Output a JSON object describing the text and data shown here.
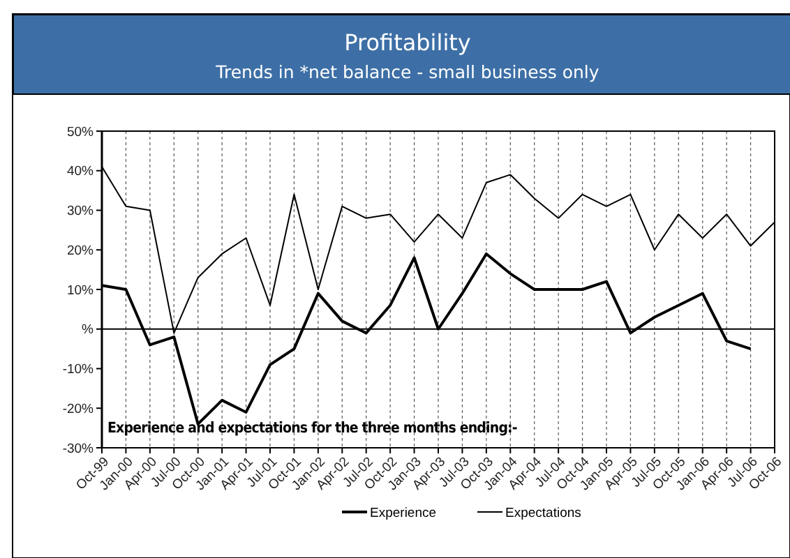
{
  "chart_data": {
    "type": "line",
    "title": "Profitability",
    "subtitle": "Trends in *net balance - small business only",
    "categories": [
      "Oct-99",
      "Jan-00",
      "Apr-00",
      "Jul-00",
      "Oct-00",
      "Jan-01",
      "Apr-01",
      "Jul-01",
      "Oct-01",
      "Jan-02",
      "Apr-02",
      "Jul-02",
      "Oct-02",
      "Jan-03",
      "Apr-03",
      "Jul-03",
      "Oct-03",
      "Jan-04",
      "Apr-04",
      "Jul-04",
      "Oct-04",
      "Jan-05",
      "Apr-05",
      "Jul-05",
      "Oct-05",
      "Jan-06",
      "Apr-06",
      "Jul-06",
      "Oct-06"
    ],
    "series": [
      {
        "name": "Experience",
        "color": "#000000",
        "values": [
          11,
          10,
          -4,
          -2,
          -24,
          -18,
          -21,
          -9,
          -5,
          9,
          2,
          -1,
          6,
          18,
          0,
          9,
          19,
          14,
          10,
          10,
          10,
          12,
          -1,
          3,
          6,
          9,
          -3,
          -5,
          null
        ]
      },
      {
        "name": "Expectations",
        "color": "#000000",
        "values": [
          41,
          31,
          30,
          -1,
          13,
          19,
          23,
          6,
          34,
          10,
          31,
          28,
          29,
          22,
          29,
          23,
          37,
          39,
          33,
          28,
          34,
          31,
          34,
          20,
          29,
          23,
          29,
          21,
          27
        ]
      }
    ],
    "ylim": [
      -30,
      50
    ],
    "yticks": [
      {
        "value": -30,
        "label": "-30%"
      },
      {
        "value": -20,
        "label": "-20%"
      },
      {
        "value": -10,
        "label": "-10%"
      },
      {
        "value": 0,
        "label": "%"
      },
      {
        "value": 10,
        "label": "10%"
      },
      {
        "value": 20,
        "label": "20%"
      },
      {
        "value": 30,
        "label": "30%"
      },
      {
        "value": 40,
        "label": "40%"
      },
      {
        "value": 50,
        "label": "50%"
      }
    ],
    "grid": "x",
    "ref_lines": [
      {
        "axis": "y",
        "value": 0
      }
    ],
    "annotations": [
      "Experience and expectations for the three months ending:-"
    ],
    "legend": "bottom",
    "marker": "none"
  }
}
